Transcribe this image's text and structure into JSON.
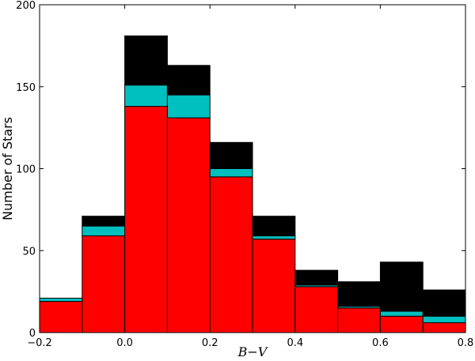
{
  "chart_data": {
    "type": "bar",
    "stacked": true,
    "xlabel": "B−V",
    "ylabel": "Number of Stars",
    "xlim": [
      -0.2,
      0.8
    ],
    "ylim": [
      0,
      200
    ],
    "bin_edges": [
      -0.2,
      -0.1,
      0.0,
      0.1,
      0.2,
      0.3,
      0.4,
      0.5,
      0.6,
      0.7,
      0.8
    ],
    "x_ticks": [
      -0.2,
      0.0,
      0.2,
      0.4,
      0.6,
      0.8
    ],
    "x_tick_labels": [
      "−0.2",
      "0.0",
      "0.2",
      "0.4",
      "0.6",
      "0.8"
    ],
    "y_ticks": [
      0,
      50,
      100,
      150,
      200
    ],
    "y_tick_labels": [
      "0",
      "50",
      "100",
      "150",
      "200"
    ],
    "grid": false,
    "series": [
      {
        "color": "#ff0000",
        "values": [
          19,
          59,
          138,
          131,
          95,
          57,
          28,
          15,
          10,
          6
        ]
      },
      {
        "color": "#00bfbf",
        "values": [
          2,
          6,
          13,
          14,
          5,
          2,
          1,
          1,
          3,
          4
        ]
      },
      {
        "color": "#000000",
        "values": [
          0,
          6,
          30,
          18,
          16,
          12,
          9,
          15,
          30,
          16
        ]
      }
    ]
  }
}
